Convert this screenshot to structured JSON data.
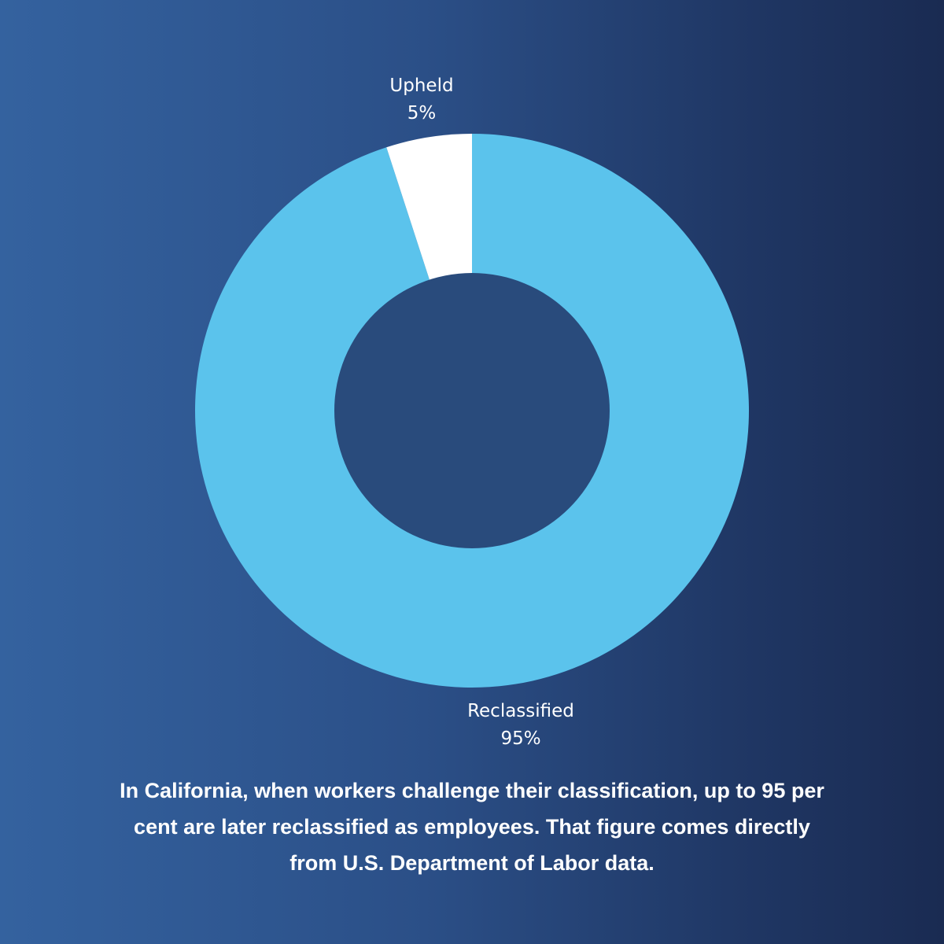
{
  "chart_data": {
    "type": "pie",
    "style": "donut",
    "slices": [
      {
        "label": "Reclassified",
        "value": 95,
        "value_label": "95%",
        "color": "#5bc3ec"
      },
      {
        "label": "Upheld",
        "value": 5,
        "value_label": "5%",
        "color": "#ffffff"
      }
    ],
    "center_color": "#294b7c"
  },
  "caption": "In California, when workers challenge their classification, up to 95 per cent are later reclassified as employees. That figure comes directly from U.S. Department of Labor data."
}
